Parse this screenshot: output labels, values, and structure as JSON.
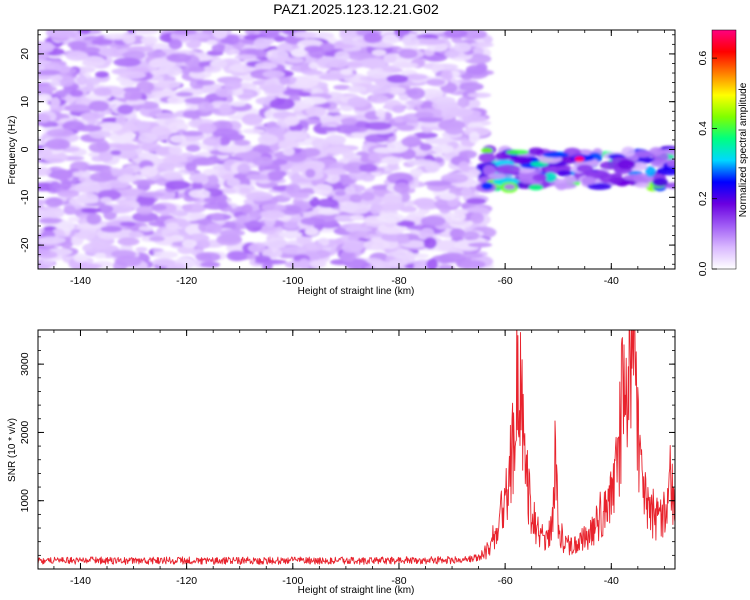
{
  "title": "PAZ1.2025.123.12.21.G02",
  "chart_data": [
    {
      "type": "heatmap",
      "title": "PAZ1.2025.123.12.21.G02",
      "xlabel": "Height of straight line (km)",
      "ylabel": "Frequency (Hz)",
      "xlim": [
        -148,
        -28
      ],
      "ylim": [
        -25,
        25
      ],
      "x_ticks": [
        -140,
        -120,
        -100,
        -80,
        -60,
        -40
      ],
      "y_ticks": [
        -20,
        -10,
        0,
        10,
        20
      ],
      "colorbar": {
        "label": "Normalized spectral amplitude",
        "range": [
          0,
          0.68
        ],
        "ticks": [
          0.0,
          0.2,
          0.4,
          0.6
        ],
        "colormap": [
          "#ffffff",
          "#d9b8ff",
          "#a05cf5",
          "#6a00e0",
          "#0000ff",
          "#00d8ff",
          "#00ff80",
          "#80ff00",
          "#ffff00",
          "#ff8000",
          "#ff0000",
          "#ff0080"
        ]
      },
      "features": [
        {
          "x_range": [
            -148,
            -64
          ],
          "y_range": [
            -25,
            25
          ],
          "amplitude_range": [
            0.0,
            0.12
          ],
          "description": "diffuse noise"
        },
        {
          "x_range": [
            -64,
            -28
          ],
          "y_range": [
            -8,
            0
          ],
          "amplitude_range": [
            0.1,
            0.68
          ],
          "description": "signal band"
        }
      ],
      "peak": {
        "x": -46,
        "y": -2,
        "amplitude": 0.68
      }
    },
    {
      "type": "line",
      "xlabel": "Height of straight line (km)",
      "ylabel": "SNR (10 * v/v)",
      "xlim": [
        -148,
        -28
      ],
      "ylim": [
        0,
        3500
      ],
      "x_ticks": [
        -140,
        -120,
        -100,
        -80,
        -60,
        -40
      ],
      "y_ticks": [
        1000,
        2000,
        3000
      ],
      "color": "#e8232d",
      "series": [
        {
          "x": [
            -148,
            -140,
            -130,
            -120,
            -110,
            -100,
            -90,
            -80,
            -70,
            -65,
            -63,
            -61,
            -60,
            -59,
            -58,
            -57.5,
            -57,
            -56,
            -55,
            -54,
            -53,
            -52,
            -51,
            -50.5,
            -50,
            -49,
            -48,
            -46,
            -44,
            -42,
            -40,
            -39,
            -38,
            -37,
            -36.5,
            -36,
            -35.5,
            -35,
            -34,
            -33,
            -32,
            -31,
            -30,
            -29,
            -28
          ],
          "y": [
            120,
            125,
            120,
            125,
            120,
            125,
            120,
            125,
            130,
            160,
            300,
            700,
            1000,
            1500,
            2500,
            2800,
            2600,
            1300,
            800,
            600,
            500,
            450,
            700,
            1800,
            700,
            400,
            350,
            450,
            500,
            800,
            1000,
            1400,
            2400,
            2600,
            2900,
            3400,
            2800,
            2000,
            1200,
            900,
            800,
            700,
            800,
            1300,
            900
          ]
        }
      ]
    }
  ]
}
